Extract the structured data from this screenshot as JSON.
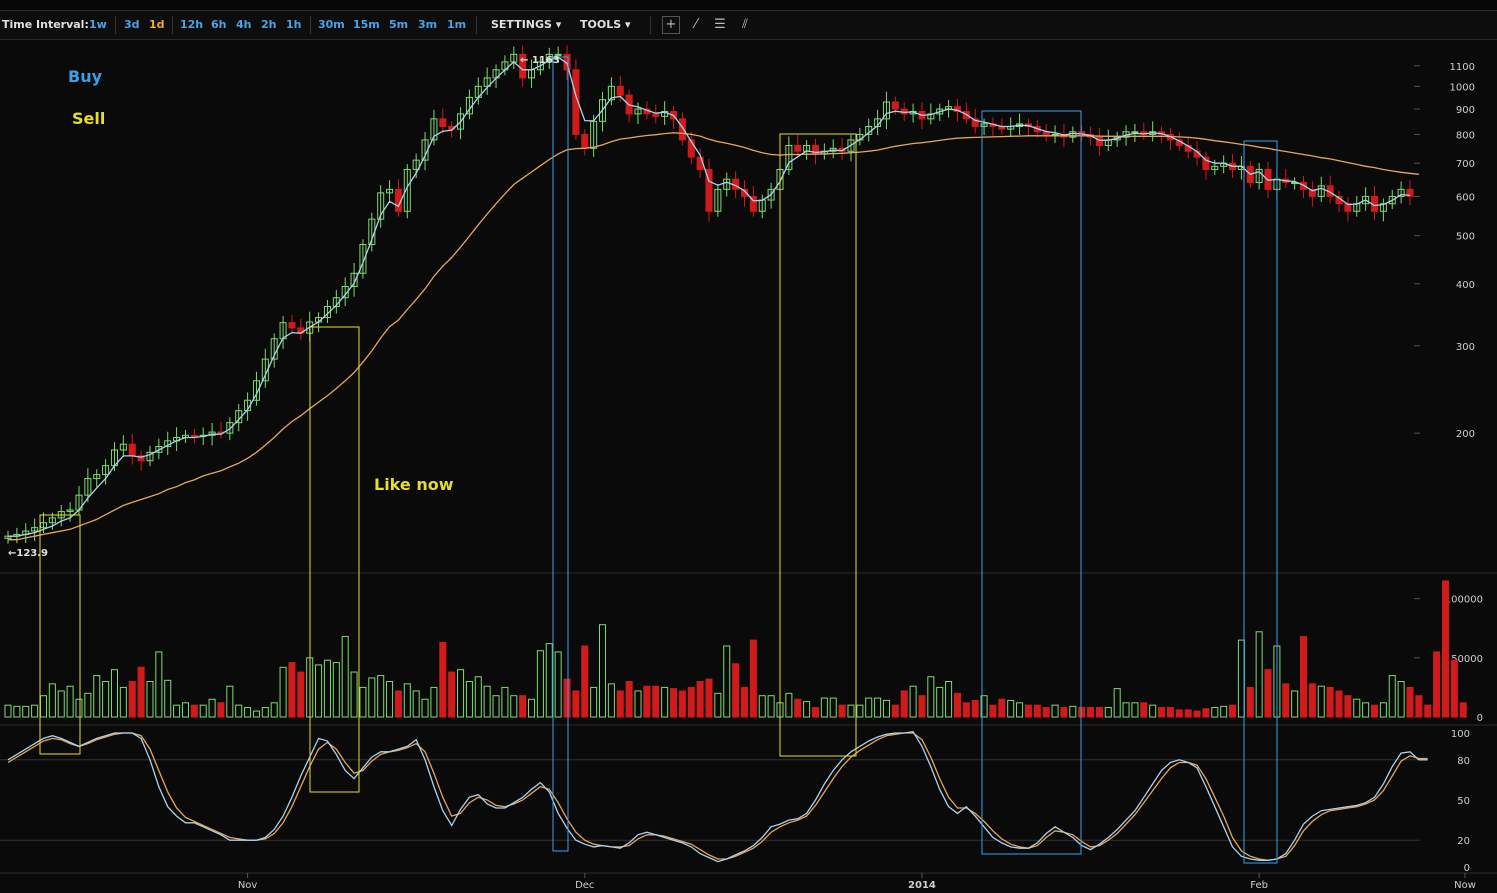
{
  "toolbar": {
    "label": "Time Interval:",
    "intervals": [
      "1w",
      "3d",
      "1d",
      "12h",
      "6h",
      "4h",
      "2h",
      "1h",
      "30m",
      "15m",
      "5m",
      "3m",
      "1m"
    ],
    "active": "1d",
    "settings": "SETTINGS",
    "tools": "TOOLS",
    "tool_icons": [
      "crosshair-icon",
      "line-icon",
      "horizontal-lines-icon",
      "fan-icon"
    ]
  },
  "annotations": {
    "buy": "Buy",
    "sell": "Sell",
    "like_now": "Like now",
    "high_label": "← 1163",
    "low_label": "←123.9"
  },
  "colors": {
    "up": "#7ddc6f",
    "down": "#d11a1a",
    "ema_fast": "#a9d3f0",
    "ema_slow": "#e8a55a",
    "buy_box": "#3aa0e8",
    "sell_box": "#e6dd2c"
  },
  "chart_data": [
    {
      "type": "candlestick",
      "panel": "price",
      "scale": "log",
      "ylim": [
        105,
        1240
      ],
      "y_ticks": [
        200,
        300,
        400,
        500,
        600,
        700,
        800,
        900,
        1000,
        1100
      ],
      "x_ticks": [
        "Nov",
        "Dec",
        "2014",
        "Feb",
        "Now"
      ],
      "series": [
        {
          "name": "price",
          "values": [
            124,
            125,
            127,
            129,
            132,
            135,
            139,
            140,
            150,
            162,
            165,
            172,
            185,
            190,
            180,
            176,
            183,
            188,
            193,
            196,
            198,
            197,
            198,
            201,
            200,
            210,
            222,
            233,
            255,
            282,
            310,
            334,
            326,
            318,
            335,
            342,
            360,
            375,
            395,
            420,
            480,
            540,
            610,
            620,
            560,
            680,
            710,
            780,
            860,
            830,
            820,
            880,
            950,
            1000,
            1040,
            1080,
            1120,
            1160,
            1040,
            1080,
            1120,
            1160,
            1160,
            1080,
            800,
            750,
            850,
            940,
            1000,
            960,
            880,
            900,
            880,
            870,
            890,
            860,
            780,
            720,
            680,
            560,
            620,
            650,
            620,
            600,
            560,
            590,
            620,
            680,
            760,
            740,
            760,
            730,
            740,
            750,
            740,
            780,
            800,
            830,
            860,
            930,
            900,
            880,
            890,
            860,
            880,
            900,
            910,
            890,
            860,
            830,
            840,
            830,
            820,
            830,
            840,
            830,
            810,
            800,
            800,
            790,
            810,
            800,
            790,
            760,
            780,
            790,
            810,
            810,
            800,
            810,
            800,
            780,
            760,
            740,
            720,
            680,
            690,
            700,
            680,
            690,
            640,
            680,
            620,
            650,
            640,
            640,
            620,
            600,
            630,
            600,
            580,
            560,
            580,
            600,
            560,
            580,
            600,
            620,
            600
          ]
        },
        {
          "name": "",
          "values": [
            124,
            124,
            125,
            126,
            128,
            130,
            133,
            135,
            140,
            148,
            155,
            162,
            172,
            180,
            180,
            179,
            181,
            185,
            189,
            193,
            196,
            196,
            197,
            199,
            199,
            204,
            213,
            223,
            240,
            262,
            287,
            311,
            319,
            318,
            327,
            335,
            348,
            362,
            380,
            401,
            441,
            491,
            551,
            586,
            573,
            627,
            669,
            725,
            793,
            812,
            816,
            848,
            899,
            950,
            995,
            1038,
            1079,
            1120,
            1080,
            1080,
            1100,
            1130,
            1145,
            1113,
            957,
            853,
            852,
            896,
            948,
            954,
            917,
            909,
            895,
            883,
            887,
            874,
            827,
            774,
            727,
            644,
            632,
            641,
            631,
            616,
            588,
            589,
            605,
            643,
            702,
            721,
            741,
            736,
            738,
            744,
            742,
            761,
            781,
            806,
            833,
            882,
            891,
            886,
            888,
            874,
            877,
            889,
            900,
            895,
            878,
            854,
            847,
            839,
            830,
            830,
            835,
            833,
            822,
            811,
            806,
            798,
            804,
            802,
            796,
            778,
            779,
            785,
            798,
            804,
            802,
            806,
            803,
            792,
            776,
            758,
            739,
            710,
            700,
            700,
            690,
            690,
            665,
            673,
            647,
            649,
            645,
            643,
            632,
            616,
            623,
            612,
            596,
            578,
            579,
            590,
            575,
            578,
            589,
            605,
            603
          ]
        },
        {
          "name": "",
          "values": [
            122,
            122,
            123,
            124,
            125,
            126,
            127,
            128,
            130,
            132,
            134,
            137,
            140,
            143,
            145,
            147,
            149,
            151,
            154,
            156,
            159,
            161,
            164,
            166,
            168,
            171,
            174,
            178,
            183,
            189,
            196,
            204,
            211,
            217,
            224,
            231,
            238,
            246,
            255,
            265,
            278,
            293,
            311,
            328,
            338,
            355,
            372,
            391,
            414,
            434,
            452,
            474,
            499,
            526,
            553,
            580,
            607,
            634,
            653,
            672,
            692,
            712,
            731,
            745,
            749,
            750,
            754,
            762,
            774,
            783,
            787,
            792,
            796,
            799,
            803,
            806,
            804,
            800,
            794,
            782,
            774,
            768,
            761,
            753,
            743,
            735,
            729,
            727,
            729,
            729,
            730,
            730,
            731,
            732,
            733,
            735,
            737,
            740,
            744,
            751,
            757,
            762,
            767,
            770,
            774,
            778,
            783,
            786,
            788,
            789,
            790,
            791,
            792,
            793,
            794,
            795,
            795,
            795,
            795,
            795,
            795,
            795,
            795,
            794,
            793,
            793,
            793,
            793,
            793,
            793,
            793,
            792,
            791,
            789,
            786,
            782,
            777,
            773,
            769,
            764,
            760,
            754,
            750,
            744,
            739,
            734,
            729,
            724,
            718,
            714,
            708,
            702,
            696,
            690,
            686,
            680,
            675,
            671,
            668,
            665
          ]
        }
      ]
    },
    {
      "type": "bar",
      "panel": "volume",
      "ylim": [
        0,
        120000
      ],
      "y_ticks": [
        0,
        50000,
        100000
      ],
      "series": [
        {
          "name": "volume",
          "values": [
            10000,
            9000,
            9000,
            10000,
            18000,
            28000,
            22000,
            26000,
            15000,
            20000,
            35000,
            30000,
            40000,
            25000,
            30000,
            42000,
            30000,
            55000,
            31000,
            10000,
            12000,
            10000,
            10000,
            15000,
            12000,
            26000,
            10000,
            8000,
            5000,
            8000,
            12000,
            42000,
            46000,
            38000,
            50000,
            44000,
            48000,
            46000,
            68000,
            38000,
            25000,
            33000,
            35000,
            30000,
            22000,
            28000,
            22000,
            15000,
            25000,
            63000,
            38000,
            40000,
            30000,
            34000,
            26000,
            18000,
            25000,
            18000,
            18000,
            15000,
            56000,
            62000,
            55000,
            32000,
            22000,
            60000,
            25000,
            78000,
            28000,
            22000,
            30000,
            22000,
            26000,
            26000,
            25000,
            24000,
            22000,
            25000,
            30000,
            32000,
            20000,
            60000,
            45000,
            25000,
            65000,
            18000,
            18000,
            12000,
            20000,
            15000,
            13000,
            8000,
            16000,
            16000,
            10000,
            10000,
            10000,
            16000,
            16000,
            14000,
            10000,
            22000,
            26000,
            18000,
            34000,
            25000,
            30000,
            20000,
            12000,
            14000,
            18000,
            10000,
            15000,
            14000,
            12000,
            10000,
            10000,
            8000,
            10000,
            8000,
            9000,
            8000,
            8000,
            8000,
            8000,
            24000,
            12000,
            12000,
            12000,
            10000,
            8000,
            8000,
            6000,
            6000,
            5000,
            7000,
            8000,
            9000,
            10000,
            65000,
            25000,
            72000,
            40000,
            60000,
            28000,
            22000,
            68000,
            28000,
            26000,
            25000,
            22000,
            18000,
            15000,
            12000,
            10000,
            12000,
            35000,
            30000,
            25000,
            18000,
            10000,
            55000,
            115000,
            48000,
            12000
          ]
        }
      ]
    },
    {
      "type": "line",
      "panel": "oscillator",
      "ylim": [
        0,
        100
      ],
      "y_ticks": [
        0,
        20,
        50,
        80,
        100
      ],
      "series": [
        {
          "name": "",
          "values": [
            80,
            84,
            88,
            92,
            96,
            98,
            96,
            93,
            90,
            93,
            96,
            98,
            100,
            100,
            100,
            96,
            80,
            60,
            45,
            38,
            33,
            33,
            30,
            27,
            24,
            20,
            20,
            20,
            20,
            22,
            28,
            38,
            52,
            68,
            82,
            96,
            94,
            84,
            72,
            66,
            74,
            82,
            86,
            86,
            88,
            90,
            95,
            80,
            60,
            42,
            31,
            43,
            52,
            54,
            47,
            44,
            44,
            48,
            52,
            58,
            63,
            56,
            40,
            29,
            20,
            17,
            15,
            16,
            15,
            14,
            18,
            24,
            26,
            24,
            22,
            20,
            18,
            15,
            10,
            7,
            4,
            6,
            9,
            12,
            16,
            22,
            30,
            32,
            35,
            36,
            40,
            50,
            62,
            72,
            80,
            86,
            90,
            94,
            97,
            99,
            100,
            100,
            101,
            90,
            75,
            58,
            45,
            40,
            45,
            38,
            30,
            22,
            18,
            15,
            14,
            14,
            18,
            25,
            30,
            26,
            22,
            16,
            13,
            17,
            22,
            28,
            35,
            42,
            52,
            62,
            72,
            78,
            80,
            78,
            74,
            60,
            45,
            30,
            15,
            8,
            6,
            5,
            5,
            6,
            10,
            20,
            32,
            38,
            42,
            43,
            44,
            45,
            46,
            48,
            52,
            62,
            75,
            85,
            86,
            80,
            80
          ]
        },
        {
          "name": "",
          "values": [
            78,
            82,
            86,
            90,
            94,
            96,
            95,
            92,
            90,
            92,
            95,
            97,
            99,
            100,
            100,
            98,
            88,
            72,
            56,
            44,
            37,
            34,
            31,
            28,
            25,
            22,
            21,
            20,
            20,
            21,
            25,
            33,
            45,
            60,
            75,
            88,
            93,
            88,
            78,
            70,
            72,
            79,
            84,
            86,
            87,
            89,
            92,
            86,
            70,
            52,
            38,
            40,
            48,
            52,
            50,
            46,
            45,
            47,
            50,
            55,
            60,
            58,
            48,
            36,
            26,
            20,
            17,
            16,
            15,
            15,
            16,
            21,
            24,
            24,
            23,
            21,
            19,
            17,
            13,
            9,
            6,
            6,
            8,
            11,
            14,
            19,
            26,
            30,
            33,
            35,
            38,
            46,
            56,
            66,
            75,
            82,
            87,
            91,
            95,
            98,
            99,
            100,
            100,
            95,
            82,
            66,
            52,
            44,
            44,
            40,
            34,
            27,
            21,
            17,
            15,
            14,
            16,
            22,
            27,
            26,
            24,
            19,
            15,
            16,
            20,
            25,
            32,
            39,
            48,
            57,
            66,
            74,
            78,
            78,
            76,
            66,
            52,
            38,
            22,
            12,
            8,
            6,
            5,
            6,
            8,
            16,
            27,
            34,
            39,
            42,
            43,
            44,
            45,
            47,
            50,
            57,
            68,
            79,
            83,
            81,
            81
          ]
        }
      ]
    }
  ]
}
